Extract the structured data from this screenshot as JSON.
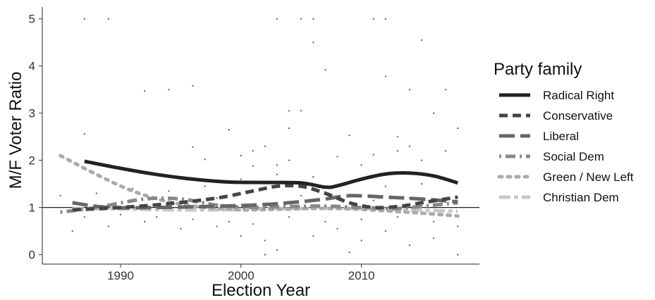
{
  "chart_data": {
    "type": "line",
    "xlabel": "Election Year",
    "ylabel": "M/F Voter Ratio",
    "xlim": [
      1983.5,
      2019.8
    ],
    "ylim": [
      -0.2,
      5.25
    ],
    "xticks": [
      1990,
      2000,
      2010
    ],
    "yticks": [
      0,
      1,
      2,
      3,
      4,
      5
    ],
    "reference_line_y": 1,
    "grid": false,
    "legend": {
      "title": "Party family",
      "position": "right",
      "entries": [
        "Radical Right",
        "Conservative",
        "Liberal",
        "Social Dem",
        "Green / New Left",
        "Christian Dem"
      ]
    },
    "series": [
      {
        "name": "Radical Right",
        "color": "#222222",
        "style": "solid",
        "x": [
          1987,
          1990,
          1993,
          1996,
          1999,
          2002,
          2005,
          2007,
          2008,
          2010,
          2012,
          2014,
          2016,
          2018
        ],
        "y": [
          1.98,
          1.83,
          1.7,
          1.6,
          1.54,
          1.53,
          1.52,
          1.43,
          1.46,
          1.6,
          1.71,
          1.73,
          1.67,
          1.52
        ]
      },
      {
        "name": "Conservative",
        "color": "#444444",
        "style": "dashed",
        "x": [
          1986,
          1990,
          1994,
          1998,
          2001,
          2003,
          2005,
          2007,
          2009,
          2011,
          2013,
          2015,
          2018
        ],
        "y": [
          0.95,
          1.0,
          1.08,
          1.2,
          1.35,
          1.45,
          1.45,
          1.3,
          1.1,
          1.0,
          1.02,
          1.1,
          1.22
        ]
      },
      {
        "name": "Liberal",
        "color": "#666666",
        "style": "longdash",
        "x": [
          1986,
          1989,
          1993,
          1997,
          2001,
          2004,
          2007,
          2009,
          2012,
          2015,
          2018
        ],
        "y": [
          1.1,
          1.0,
          1.0,
          1.02,
          1.05,
          1.1,
          1.18,
          1.25,
          1.22,
          1.18,
          1.12
        ]
      },
      {
        "name": "Social Dem",
        "color": "#888888",
        "style": "dotdash",
        "x": [
          1985,
          1988,
          1992,
          1995,
          1998,
          2001,
          2004,
          2007,
          2010,
          2013,
          2016,
          2018
        ],
        "y": [
          0.9,
          1.0,
          1.18,
          1.18,
          1.05,
          1.0,
          1.02,
          1.03,
          1.0,
          0.98,
          1.05,
          1.1
        ]
      },
      {
        "name": "Green / New Left",
        "color": "#aaaaaa",
        "style": "dotted",
        "x": [
          1985,
          1988,
          1991,
          1994,
          1997,
          2000,
          2003,
          2006,
          2009,
          2012,
          2015,
          2018
        ],
        "y": [
          2.1,
          1.7,
          1.35,
          1.12,
          1.0,
          0.95,
          0.96,
          0.98,
          0.97,
          0.93,
          0.88,
          0.82
        ]
      },
      {
        "name": "Christian Dem",
        "color": "#c8c8c8",
        "style": "twodash",
        "x": [
          1986,
          1990,
          1994,
          1998,
          2002,
          2006,
          2010,
          2014,
          2018
        ],
        "y": [
          0.98,
          0.97,
          0.95,
          0.95,
          0.97,
          0.98,
          0.98,
          0.95,
          0.92
        ]
      }
    ],
    "points": [
      [
        1987,
        5.0
      ],
      [
        1989,
        5.0
      ],
      [
        2003,
        5.0
      ],
      [
        2005,
        5.0
      ],
      [
        2006,
        5.0
      ],
      [
        2011,
        5.0
      ],
      [
        2012,
        5.0
      ],
      [
        2015,
        4.55
      ],
      [
        2006,
        4.5
      ],
      [
        1994,
        3.5
      ],
      [
        2007,
        3.92
      ],
      [
        2012,
        3.78
      ],
      [
        2014,
        3.5
      ],
      [
        2017,
        3.5
      ],
      [
        1992,
        3.47
      ],
      [
        2004,
        3.05
      ],
      [
        2005,
        3.05
      ],
      [
        2016,
        3.0
      ],
      [
        1996,
        3.58
      ],
      [
        1999,
        2.65
      ],
      [
        2004,
        2.68
      ],
      [
        2018,
        2.68
      ],
      [
        1987,
        2.56
      ],
      [
        2009,
        2.53
      ],
      [
        2013,
        2.5
      ],
      [
        2014,
        2.3
      ],
      [
        2001,
        2.2
      ],
      [
        2002,
        2.3
      ],
      [
        1996,
        2.28
      ],
      [
        2017,
        2.2
      ],
      [
        2015,
        2.0
      ],
      [
        2008,
        2.08
      ],
      [
        2011,
        2.12
      ],
      [
        1997,
        2.02
      ],
      [
        2001,
        1.88
      ],
      [
        2003,
        1.9
      ],
      [
        1986,
        0.5
      ],
      [
        1989,
        0.6
      ],
      [
        1992,
        0.7
      ],
      [
        1995,
        0.55
      ],
      [
        1998,
        0.6
      ],
      [
        2000,
        0.4
      ],
      [
        2002,
        0.3
      ],
      [
        2003,
        0.1
      ],
      [
        2006,
        0.4
      ],
      [
        2008,
        0.55
      ],
      [
        2010,
        0.3
      ],
      [
        2012,
        0.5
      ],
      [
        2014,
        0.2
      ],
      [
        2016,
        0.35
      ],
      [
        2018,
        0.0
      ],
      [
        2002,
        0.0
      ],
      [
        2009,
        0.05
      ],
      [
        1985,
        1.25
      ],
      [
        1988,
        1.3
      ],
      [
        1991,
        1.4
      ],
      [
        1994,
        1.35
      ],
      [
        1997,
        1.45
      ],
      [
        2000,
        1.6
      ],
      [
        2003,
        1.7
      ],
      [
        2006,
        1.65
      ],
      [
        2009,
        1.55
      ],
      [
        2012,
        1.45
      ],
      [
        2015,
        1.5
      ],
      [
        2017,
        1.6
      ],
      [
        1990,
        0.85
      ],
      [
        1993,
        0.8
      ],
      [
        1996,
        0.75
      ],
      [
        1999,
        0.7
      ],
      [
        2001,
        0.65
      ],
      [
        2004,
        0.8
      ],
      [
        2007,
        0.7
      ],
      [
        2010,
        0.75
      ],
      [
        2013,
        0.8
      ],
      [
        2016,
        0.7
      ],
      [
        2018,
        0.6
      ],
      [
        1987,
        0.8
      ],
      [
        1998,
        1.2
      ],
      [
        2005,
        1.25
      ],
      [
        2011,
        1.15
      ],
      [
        2014,
        1.2
      ],
      [
        2004,
        2.0
      ],
      [
        2010,
        1.9
      ],
      [
        2000,
        2.1
      ],
      [
        2013,
        2.2
      ]
    ]
  }
}
